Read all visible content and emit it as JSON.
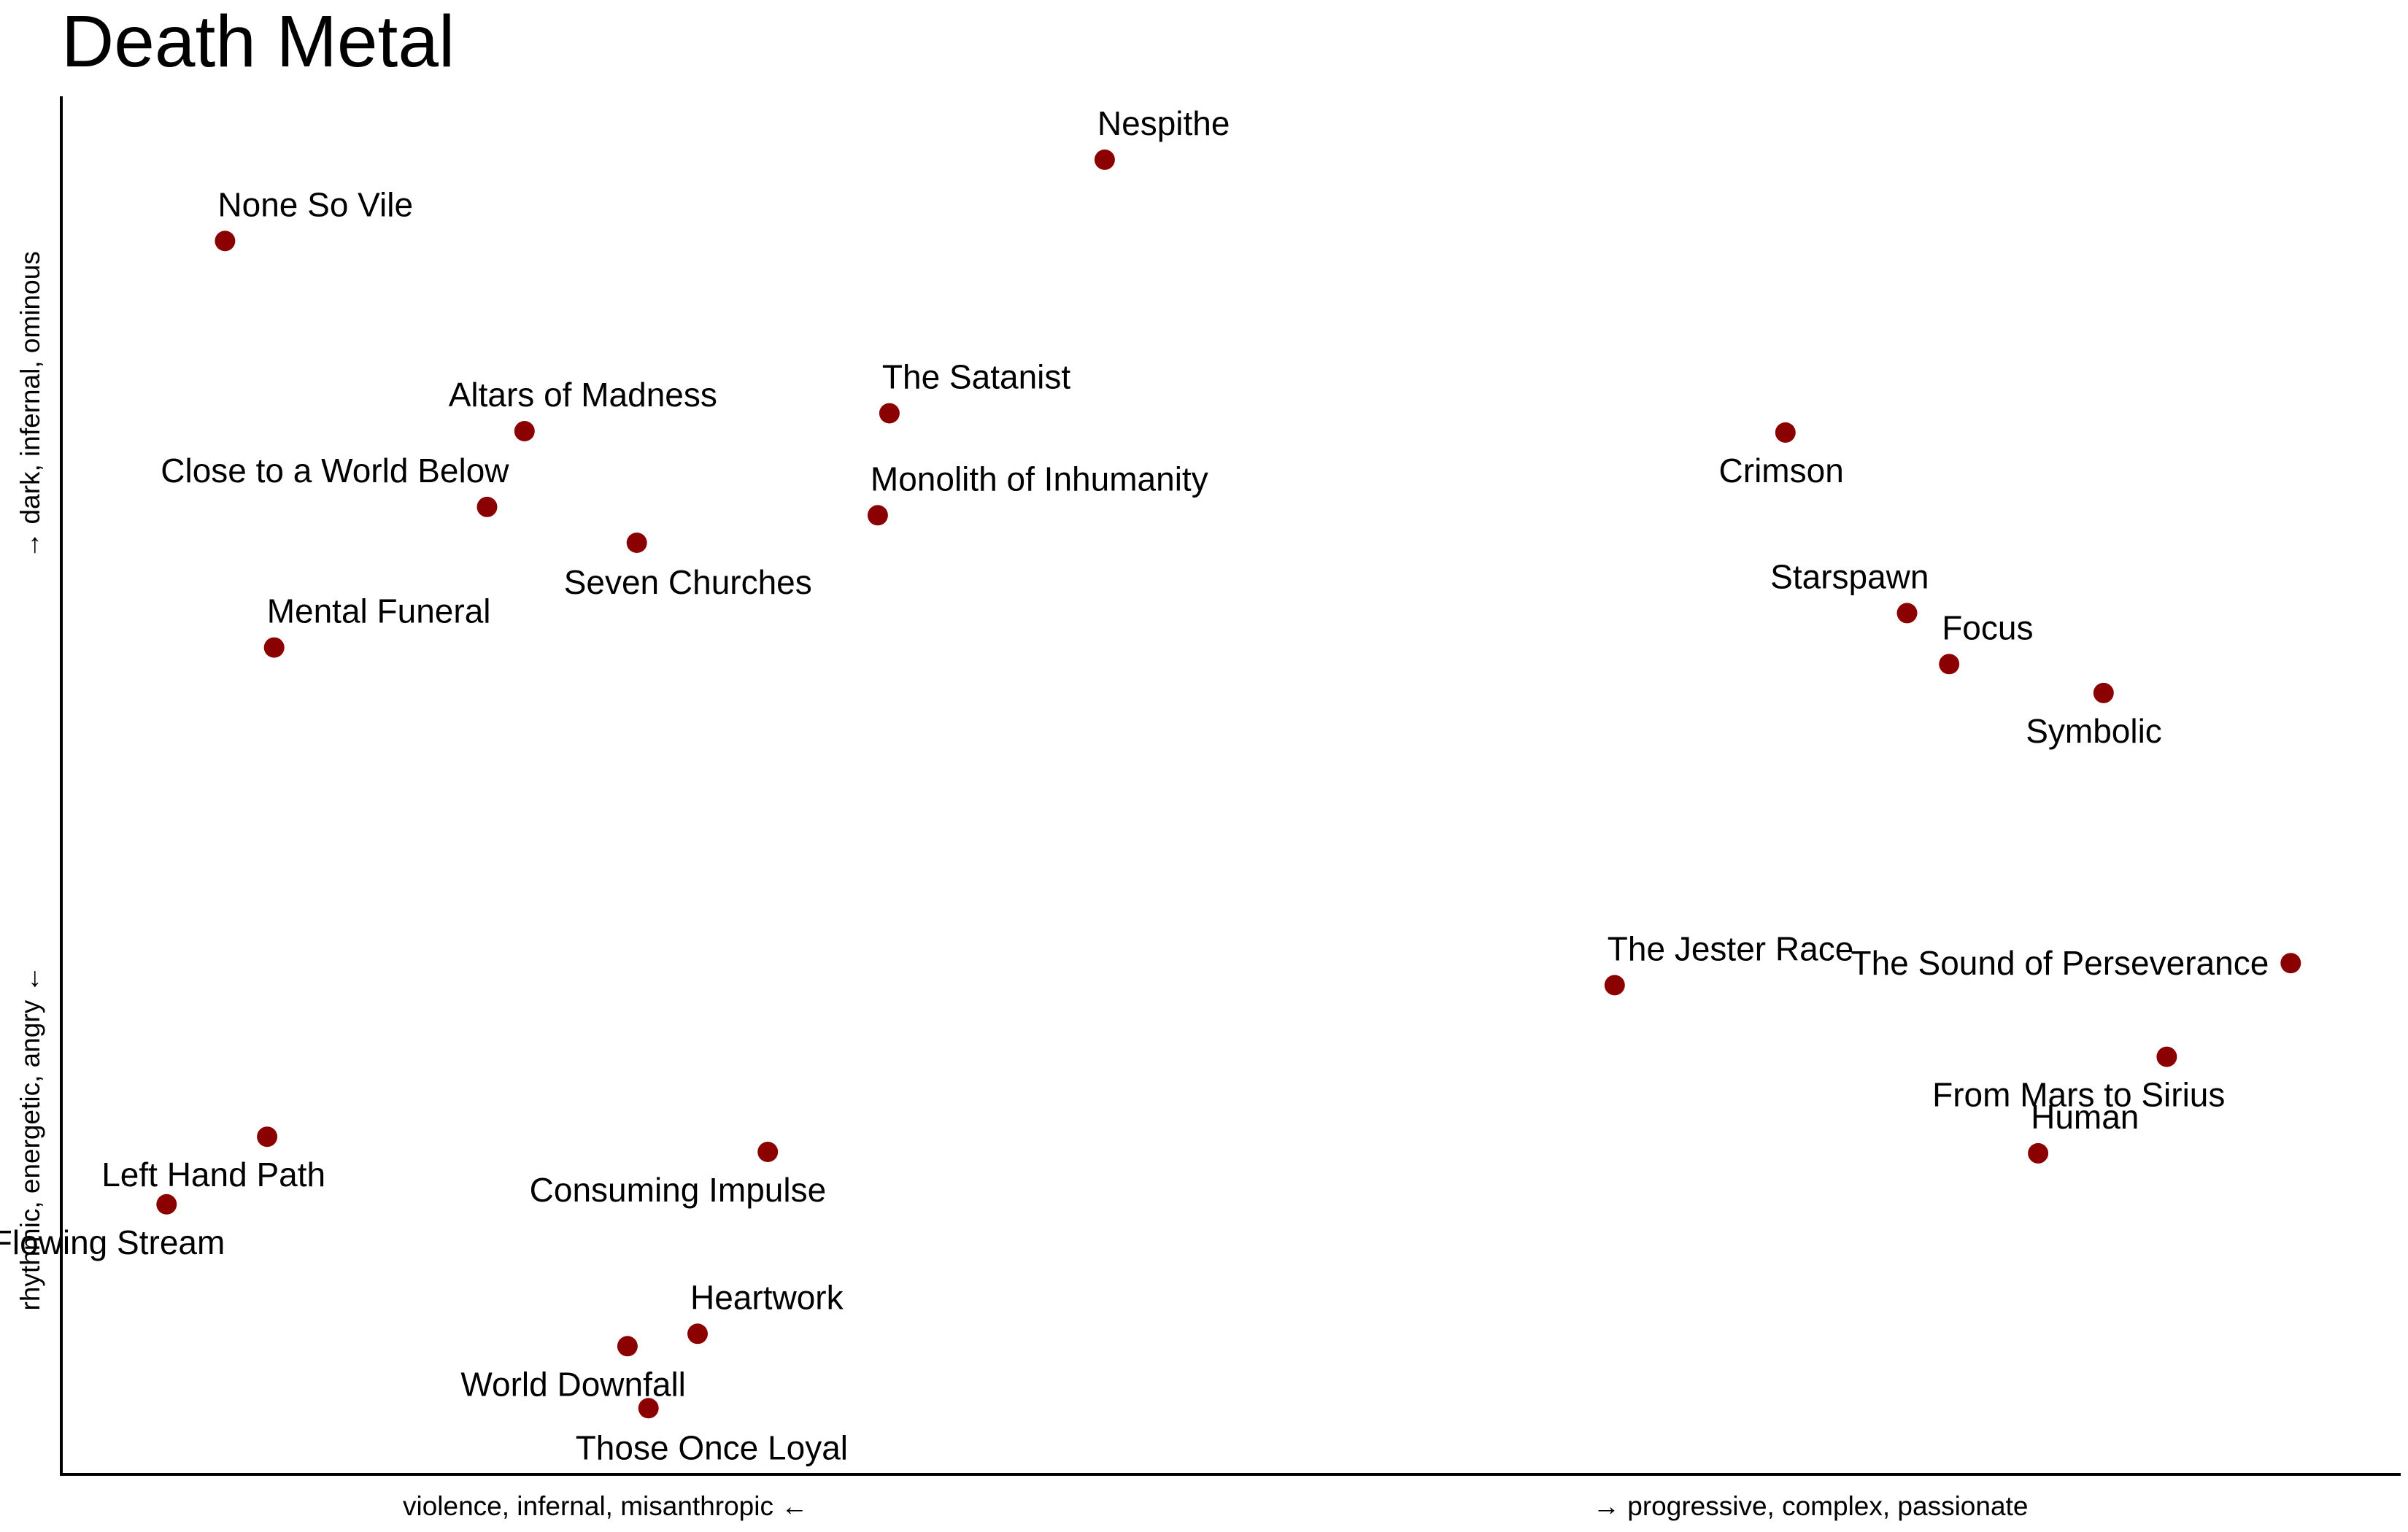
{
  "chart_data": {
    "type": "scatter",
    "title": "Death Metal",
    "xlabel_left": "violence, infernal, misanthropic ←",
    "xlabel_right": "→ progressive, complex, passionate",
    "ylabel_top": "→ dark, infernal, ominous",
    "ylabel_bottom": "rhythmic, energetic, angry ←",
    "xlim": [
      0,
      100
    ],
    "ylim": [
      0,
      100
    ],
    "grid": false,
    "point_color": "#8b0000",
    "points": [
      {
        "label": "Nespithe",
        "x": 44.6,
        "y": 95.4,
        "label_pos": "above-right"
      },
      {
        "label": "None So Vile",
        "x": 7.0,
        "y": 89.5,
        "label_pos": "above-right"
      },
      {
        "label": "Altars of Madness",
        "x": 19.8,
        "y": 75.7,
        "label_pos": "above-center"
      },
      {
        "label": "The Satanist",
        "x": 35.4,
        "y": 77.0,
        "label_pos": "above-right"
      },
      {
        "label": "Close to a World Below",
        "x": 18.2,
        "y": 70.2,
        "label_pos": "above-left"
      },
      {
        "label": "Monolith of Inhumanity",
        "x": 34.9,
        "y": 69.6,
        "label_pos": "above-right"
      },
      {
        "label": "Seven Churches",
        "x": 24.6,
        "y": 67.6,
        "label_pos": "below-right"
      },
      {
        "label": "Mental Funeral",
        "x": 9.1,
        "y": 60.0,
        "label_pos": "above-right"
      },
      {
        "label": "Crimson",
        "x": 73.7,
        "y": 75.6,
        "label_pos": "below-left"
      },
      {
        "label": "Starspawn",
        "x": 78.9,
        "y": 62.5,
        "label_pos": "above-left"
      },
      {
        "label": "Focus",
        "x": 80.7,
        "y": 58.8,
        "label_pos": "above-right"
      },
      {
        "label": "Symbolic",
        "x": 87.3,
        "y": 56.7,
        "label_pos": "below-left"
      },
      {
        "label": "The Jester Race",
        "x": 66.4,
        "y": 35.5,
        "label_pos": "above-right"
      },
      {
        "label": "The Sound of Perseverance",
        "x": 95.3,
        "y": 37.1,
        "label_pos": "left"
      },
      {
        "label": "From Mars to Sirius",
        "x": 90.0,
        "y": 30.3,
        "label_pos": "below-left"
      },
      {
        "label": "Human",
        "x": 84.5,
        "y": 23.3,
        "label_pos": "above-right"
      },
      {
        "label": "Left Hand Path",
        "x": 8.8,
        "y": 24.5,
        "label_pos": "below-left"
      },
      {
        "label": "Like an Ever Flowing Stream",
        "x": 4.5,
        "y": 19.6,
        "label_pos": "below-left"
      },
      {
        "label": "Consuming Impulse",
        "x": 30.2,
        "y": 23.4,
        "label_pos": "below-left"
      },
      {
        "label": "Heartwork",
        "x": 27.2,
        "y": 10.2,
        "label_pos": "above-right"
      },
      {
        "label": "World Downfall",
        "x": 24.2,
        "y": 9.3,
        "label_pos": "below-left"
      },
      {
        "label": "Those Once Loyal",
        "x": 25.1,
        "y": 4.8,
        "label_pos": "below-right"
      }
    ]
  }
}
